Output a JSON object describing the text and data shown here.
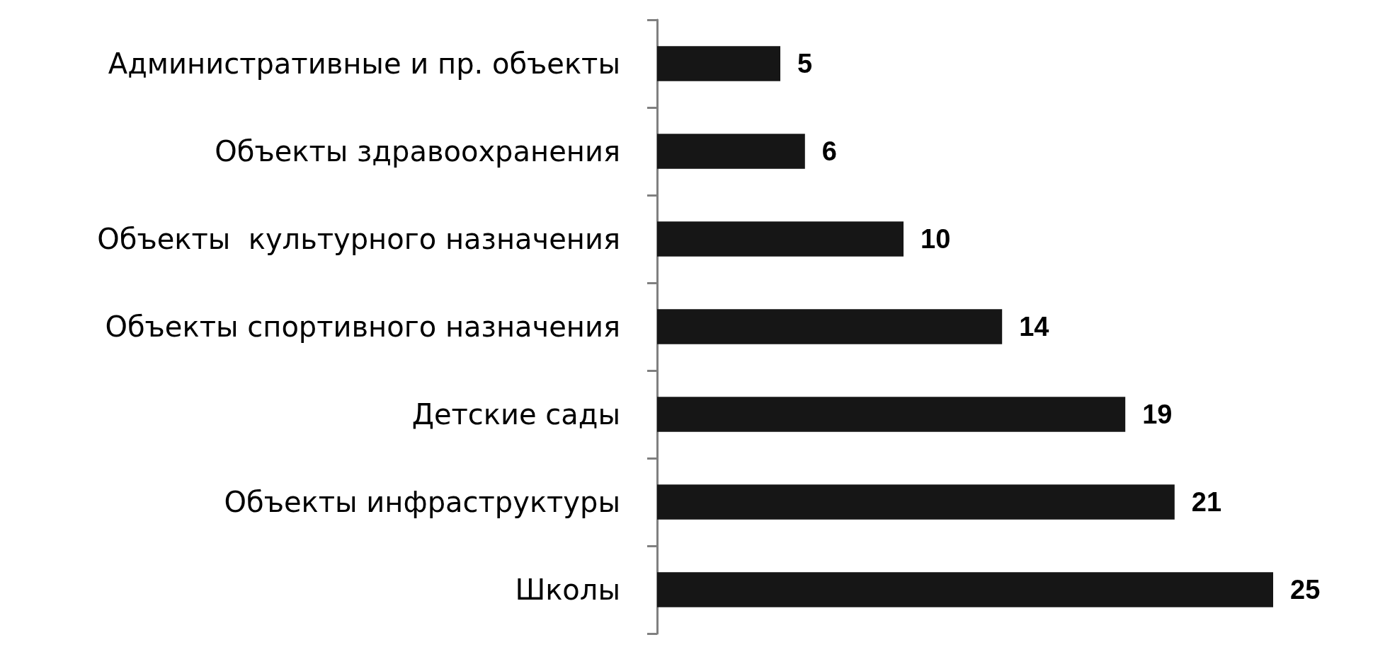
{
  "chart_data": {
    "type": "bar",
    "orientation": "horizontal",
    "categories": [
      "Административные и пр. объекты",
      "Объекты здравоохранения",
      "Объекты  культурного назначения",
      "Объекты спортивного назначения",
      "Детские сады",
      "Объекты инфраструктуры",
      "Школы"
    ],
    "values": [
      5,
      6,
      10,
      14,
      19,
      21,
      25
    ],
    "color": "#161616",
    "data_labels": true
  }
}
